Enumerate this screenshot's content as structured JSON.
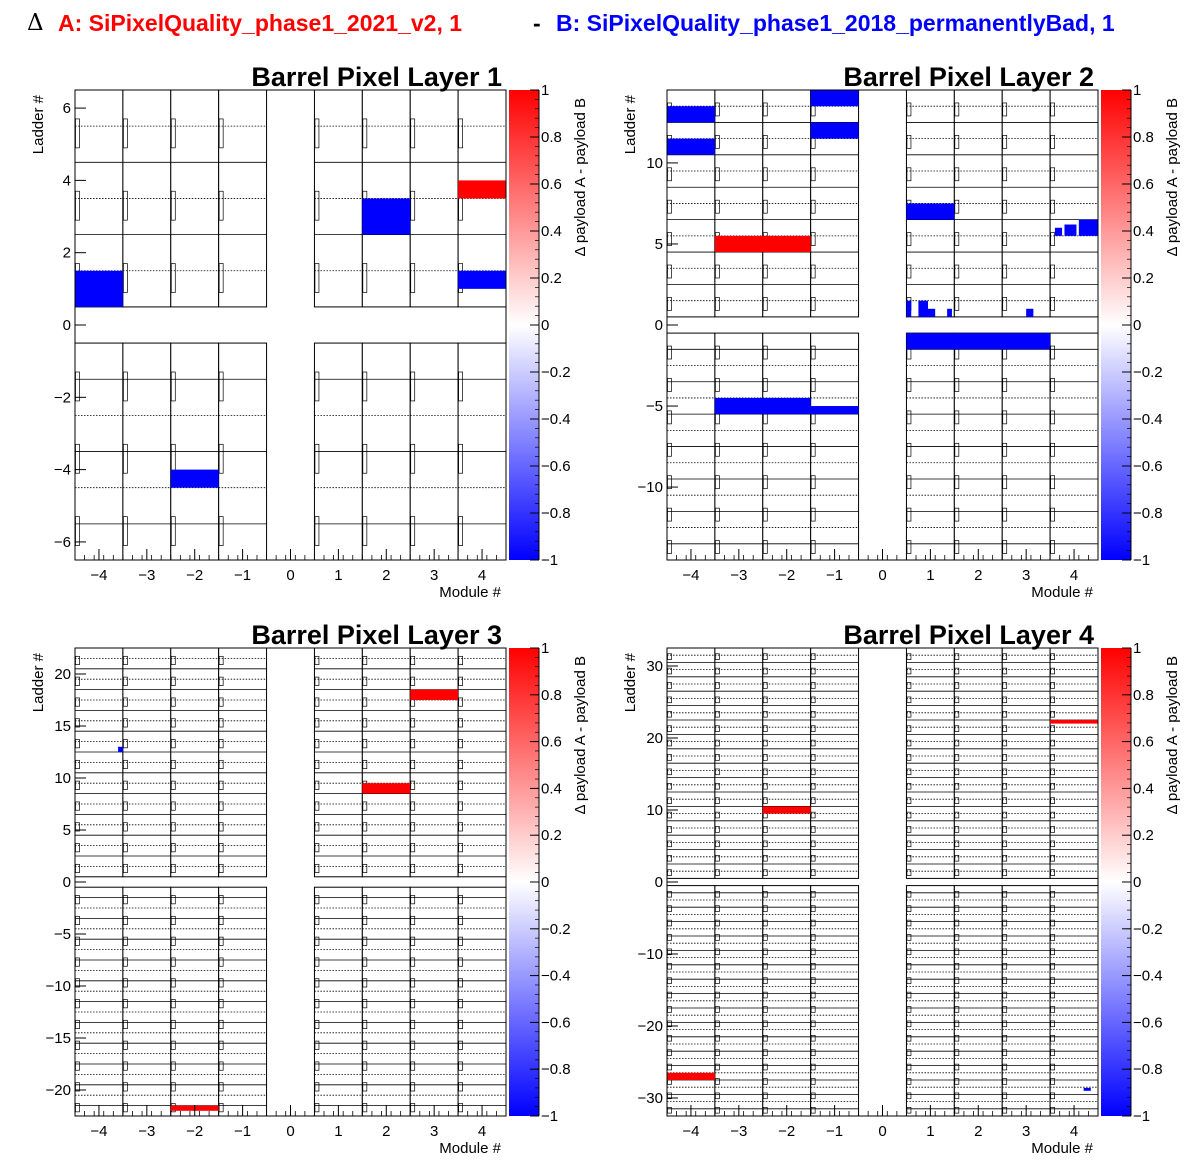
{
  "header": {
    "delta_symbol": "Δ",
    "title_a": "A: SiPixelQuality_phase1_2021_v2, 1",
    "separator": "-",
    "title_b": "B: SiPixelQuality_phase1_2018_permanentlyBad, 1"
  },
  "colors": {
    "payload_a": "#ff0000",
    "payload_b": "#0000ff",
    "positive": "#ff0000",
    "negative": "#0000ff"
  },
  "chart_data": [
    {
      "type": "heatmap",
      "title": "Barrel Pixel Layer 1",
      "xlabel": "Module #",
      "ylabel": "Ladder #",
      "zlabel": "Δ payload A - payload B",
      "xlim": [
        -4.5,
        4.5
      ],
      "ylim": [
        -6.5,
        6.5
      ],
      "zlim": [
        -1,
        1
      ],
      "xticks": [
        -4,
        -3,
        -2,
        -1,
        0,
        1,
        2,
        3,
        4
      ],
      "yticks": [
        -6,
        -4,
        -2,
        0,
        2,
        4,
        6
      ],
      "zticks": [
        -1,
        -0.8,
        -0.6,
        -0.4,
        -0.2,
        0,
        0.2,
        0.4,
        0.6,
        0.8,
        1
      ],
      "ladders": 6,
      "cells": [
        {
          "x0": -4.5,
          "x1": -3.5,
          "y0": 0.5,
          "y1": 1.5,
          "z": -1
        },
        {
          "x0": 1.5,
          "x1": 2.5,
          "y0": 2.5,
          "y1": 3.5,
          "z": -1
        },
        {
          "x0": 3.5,
          "x1": 4.5,
          "y0": 3.5,
          "y1": 4.0,
          "z": 1
        },
        {
          "x0": 3.5,
          "x1": 4.5,
          "y0": 1.0,
          "y1": 1.5,
          "z": -1
        },
        {
          "x0": -2.5,
          "x1": -1.5,
          "y0": -4.5,
          "y1": -4.0,
          "z": -1
        }
      ]
    },
    {
      "type": "heatmap",
      "title": "Barrel Pixel Layer 2",
      "xlabel": "Module #",
      "ylabel": "Ladder #",
      "zlabel": "Δ payload A - payload B",
      "xlim": [
        -4.5,
        4.5
      ],
      "ylim": [
        -14.5,
        14.5
      ],
      "zlim": [
        -1,
        1
      ],
      "xticks": [
        -4,
        -3,
        -2,
        -1,
        0,
        1,
        2,
        3,
        4
      ],
      "yticks": [
        -10,
        -5,
        0,
        5,
        10
      ],
      "zticks": [
        -1,
        -0.8,
        -0.6,
        -0.4,
        -0.2,
        0,
        0.2,
        0.4,
        0.6,
        0.8,
        1
      ],
      "ladders": 14,
      "cells": [
        {
          "x0": -4.5,
          "x1": -3.5,
          "y0": 12.5,
          "y1": 13.5,
          "z": -1
        },
        {
          "x0": -4.5,
          "x1": -3.5,
          "y0": 10.5,
          "y1": 11.5,
          "z": -1
        },
        {
          "x0": -1.5,
          "x1": -0.5,
          "y0": 13.5,
          "y1": 14.5,
          "z": -1
        },
        {
          "x0": -1.5,
          "x1": -0.5,
          "y0": 11.5,
          "y1": 12.5,
          "z": -1
        },
        {
          "x0": -3.5,
          "x1": -1.5,
          "y0": 4.5,
          "y1": 5.5,
          "z": 1
        },
        {
          "x0": 0.5,
          "x1": 1.5,
          "y0": 6.5,
          "y1": 7.5,
          "z": -1
        },
        {
          "x0": 3.6,
          "x1": 3.75,
          "y0": 5.5,
          "y1": 6.0,
          "z": -1
        },
        {
          "x0": 3.8,
          "x1": 4.05,
          "y0": 5.5,
          "y1": 6.2,
          "z": -1
        },
        {
          "x0": 4.1,
          "x1": 4.5,
          "y0": 5.5,
          "y1": 6.5,
          "z": -1
        },
        {
          "x0": 0.5,
          "x1": 0.6,
          "y0": 0.5,
          "y1": 1.5,
          "z": -1
        },
        {
          "x0": 0.75,
          "x1": 0.95,
          "y0": 0.5,
          "y1": 1.5,
          "z": -1
        },
        {
          "x0": 0.95,
          "x1": 1.1,
          "y0": 0.5,
          "y1": 1.0,
          "z": -1
        },
        {
          "x0": 1.35,
          "x1": 1.45,
          "y0": 0.5,
          "y1": 1.0,
          "z": -1
        },
        {
          "x0": 3.0,
          "x1": 3.15,
          "y0": 0.5,
          "y1": 1.0,
          "z": -1
        },
        {
          "x0": 0.5,
          "x1": 3.5,
          "y0": -1.5,
          "y1": -0.5,
          "z": -1
        },
        {
          "x0": -3.5,
          "x1": -1.5,
          "y0": -5.5,
          "y1": -4.5,
          "z": -1
        },
        {
          "x0": -1.5,
          "x1": -0.5,
          "y0": -5.5,
          "y1": -5.0,
          "z": -1
        }
      ]
    },
    {
      "type": "heatmap",
      "title": "Barrel Pixel Layer 3",
      "xlabel": "Module #",
      "ylabel": "Ladder #",
      "zlabel": "Δ payload A - payload B",
      "xlim": [
        -4.5,
        4.5
      ],
      "ylim": [
        -22.5,
        22.5
      ],
      "zlim": [
        -1,
        1
      ],
      "xticks": [
        -4,
        -3,
        -2,
        -1,
        0,
        1,
        2,
        3,
        4
      ],
      "yticks": [
        -20,
        -15,
        -10,
        -5,
        0,
        5,
        10,
        15,
        20
      ],
      "zticks": [
        -1,
        -0.8,
        -0.6,
        -0.4,
        -0.2,
        0,
        0.2,
        0.4,
        0.6,
        0.8,
        1
      ],
      "ladders": 22,
      "cells": [
        {
          "x0": -3.6,
          "x1": -3.5,
          "y0": 12.5,
          "y1": 13.0,
          "z": -1
        },
        {
          "x0": 2.5,
          "x1": 3.5,
          "y0": 17.5,
          "y1": 18.5,
          "z": 1
        },
        {
          "x0": 1.5,
          "x1": 2.5,
          "y0": 8.5,
          "y1": 9.5,
          "z": 1
        },
        {
          "x0": -2.5,
          "x1": -1.5,
          "y0": -22.0,
          "y1": -21.5,
          "z": 1
        }
      ]
    },
    {
      "type": "heatmap",
      "title": "Barrel Pixel Layer 4",
      "xlabel": "Module #",
      "ylabel": "Ladder #",
      "zlabel": "Δ payload A - payload B",
      "xlim": [
        -4.5,
        4.5
      ],
      "ylim": [
        -32.5,
        32.5
      ],
      "zlim": [
        -1,
        1
      ],
      "xticks": [
        -4,
        -3,
        -2,
        -1,
        0,
        1,
        2,
        3,
        4
      ],
      "yticks": [
        -30,
        -20,
        -10,
        0,
        10,
        20,
        30
      ],
      "zticks": [
        -1,
        -0.8,
        -0.6,
        -0.4,
        -0.2,
        0,
        0.2,
        0.4,
        0.6,
        0.8,
        1
      ],
      "ladders": 32,
      "cells": [
        {
          "x0": 3.5,
          "x1": 4.5,
          "y0": 22.0,
          "y1": 22.5,
          "z": 1
        },
        {
          "x0": -2.5,
          "x1": -1.5,
          "y0": 9.5,
          "y1": 10.5,
          "z": 1
        },
        {
          "x0": -4.5,
          "x1": -3.5,
          "y0": -27.5,
          "y1": -26.5,
          "z": 1
        },
        {
          "x0": 4.2,
          "x1": 4.35,
          "y0": -29.0,
          "y1": -28.6,
          "z": -1
        }
      ]
    }
  ]
}
